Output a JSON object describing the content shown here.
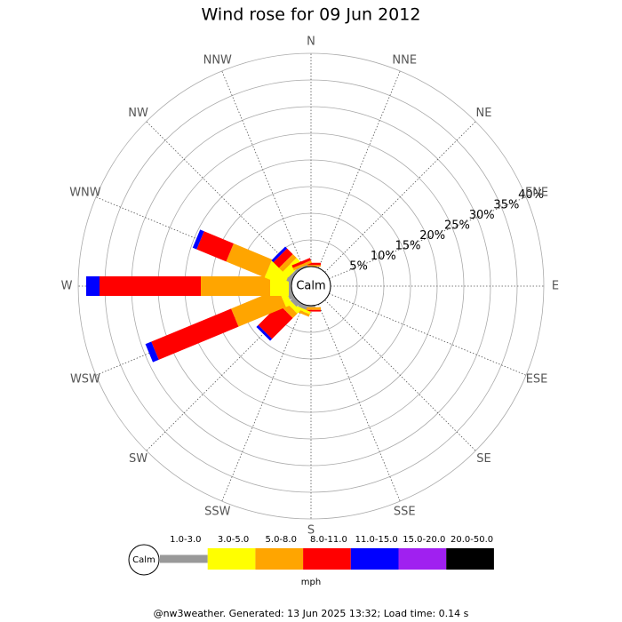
{
  "chart_data": {
    "type": "windrose",
    "title": "Wind rose for 09 Jun 2012",
    "categories": [
      "N",
      "NNE",
      "NE",
      "ENE",
      "E",
      "ESE",
      "SE",
      "SSE",
      "S",
      "SSW",
      "SW",
      "WSW",
      "W",
      "WNW",
      "NW",
      "NNW"
    ],
    "series": [
      {
        "name": "1.0-3.0",
        "color": "#999999",
        "values": [
          0,
          0,
          0,
          0,
          0,
          0,
          0,
          0,
          0.3,
          0.8,
          1,
          1,
          0.5,
          1,
          0.5,
          0.3
        ]
      },
      {
        "name": "3.0-5.0",
        "color": "#ffff00",
        "values": [
          0,
          0,
          0,
          0,
          0,
          0,
          0,
          0,
          0,
          0.5,
          0.8,
          1.2,
          3.5,
          4,
          1.5,
          0
        ]
      },
      {
        "name": "5.0-8.0",
        "color": "#ffa500",
        "values": [
          0.3,
          0,
          0,
          0,
          0,
          0,
          0,
          0,
          0.5,
          0.5,
          1.2,
          9.6,
          13,
          7.8,
          1,
          0.5
        ]
      },
      {
        "name": "8.0-11.0",
        "color": "#ff0000",
        "values": [
          0.4,
          0,
          0,
          0,
          0,
          0,
          0,
          0,
          0.3,
          0,
          5.5,
          16.2,
          19,
          6,
          1.5,
          0.5
        ]
      },
      {
        "name": "11.0-15.0",
        "color": "#0000ff",
        "values": [
          0,
          0,
          0,
          0,
          0,
          0,
          0,
          0,
          0,
          0,
          0.5,
          1.2,
          2.5,
          0.8,
          0.5,
          0
        ]
      },
      {
        "name": "15.0-20.0",
        "color": "#a020f0",
        "values": [
          0,
          0,
          0,
          0,
          0,
          0,
          0,
          0,
          0,
          0,
          0,
          0,
          0,
          0,
          0,
          0
        ]
      },
      {
        "name": "20.0-50.0",
        "color": "#000000",
        "values": [
          0,
          0,
          0,
          0,
          0,
          0,
          0,
          0,
          0,
          0,
          0,
          0,
          0,
          0,
          0,
          0
        ]
      }
    ],
    "ylim": [
      0,
      40
    ],
    "yticks": [
      {
        "value": 5,
        "label": "5%"
      },
      {
        "value": 10,
        "label": "10%"
      },
      {
        "value": 15,
        "label": "15%"
      },
      {
        "value": 20,
        "label": "20%"
      },
      {
        "value": 25,
        "label": "25%"
      },
      {
        "value": 30,
        "label": "30%"
      },
      {
        "value": 35,
        "label": "35%"
      },
      {
        "value": 40,
        "label": "40%"
      }
    ],
    "calm_label": "Calm",
    "unit": "mph",
    "footer": "@nw3weather. Generated: 13 Jun 2025 13:32; Load time: 0.14 s"
  }
}
